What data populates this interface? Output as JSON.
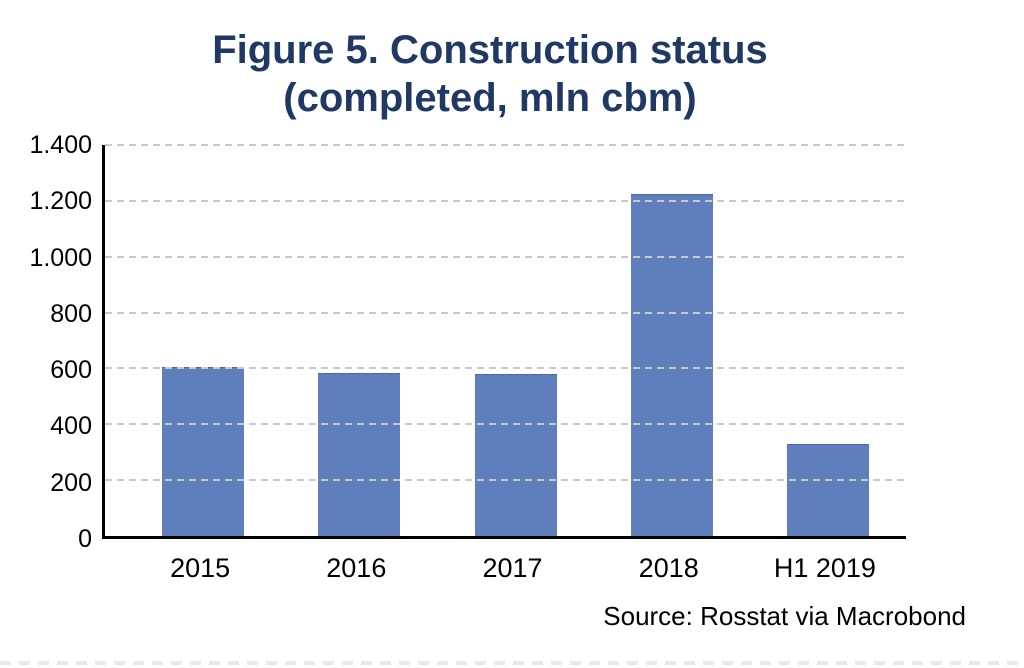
{
  "title": {
    "line1": "Figure 5. Construction status",
    "line2": "(completed, mln cbm)"
  },
  "source_note": "Source: Rosstat via Macrobond",
  "colors": {
    "title": "#1f3864",
    "bar": "#5e7ebc",
    "bar_border": "#49699f",
    "gridline": "#c9c9c9",
    "axis": "#000000",
    "label_text": "#000000",
    "bottom_rule": "#e7e7ee"
  },
  "chart_data": {
    "type": "bar",
    "title": "Figure 5. Construction status (completed, mln cbm)",
    "categories": [
      "2015",
      "2016",
      "2017",
      "2018",
      "H1 2019"
    ],
    "values": [
      605,
      585,
      580,
      1225,
      330
    ],
    "xlabel": "",
    "ylabel": "",
    "ylim": [
      0,
      1400
    ],
    "y_ticks": [
      {
        "value": 0,
        "label": "0"
      },
      {
        "value": 200,
        "label": "200"
      },
      {
        "value": 400,
        "label": "400"
      },
      {
        "value": 600,
        "label": "600"
      },
      {
        "value": 800,
        "label": "800"
      },
      {
        "value": 1000,
        "label": "1.000"
      },
      {
        "value": 1200,
        "label": "1.200"
      },
      {
        "value": 1400,
        "label": "1.400"
      }
    ],
    "grid": "horizontal-dashed",
    "legend_position": "none",
    "source": "Source: Rosstat via Macrobond"
  }
}
